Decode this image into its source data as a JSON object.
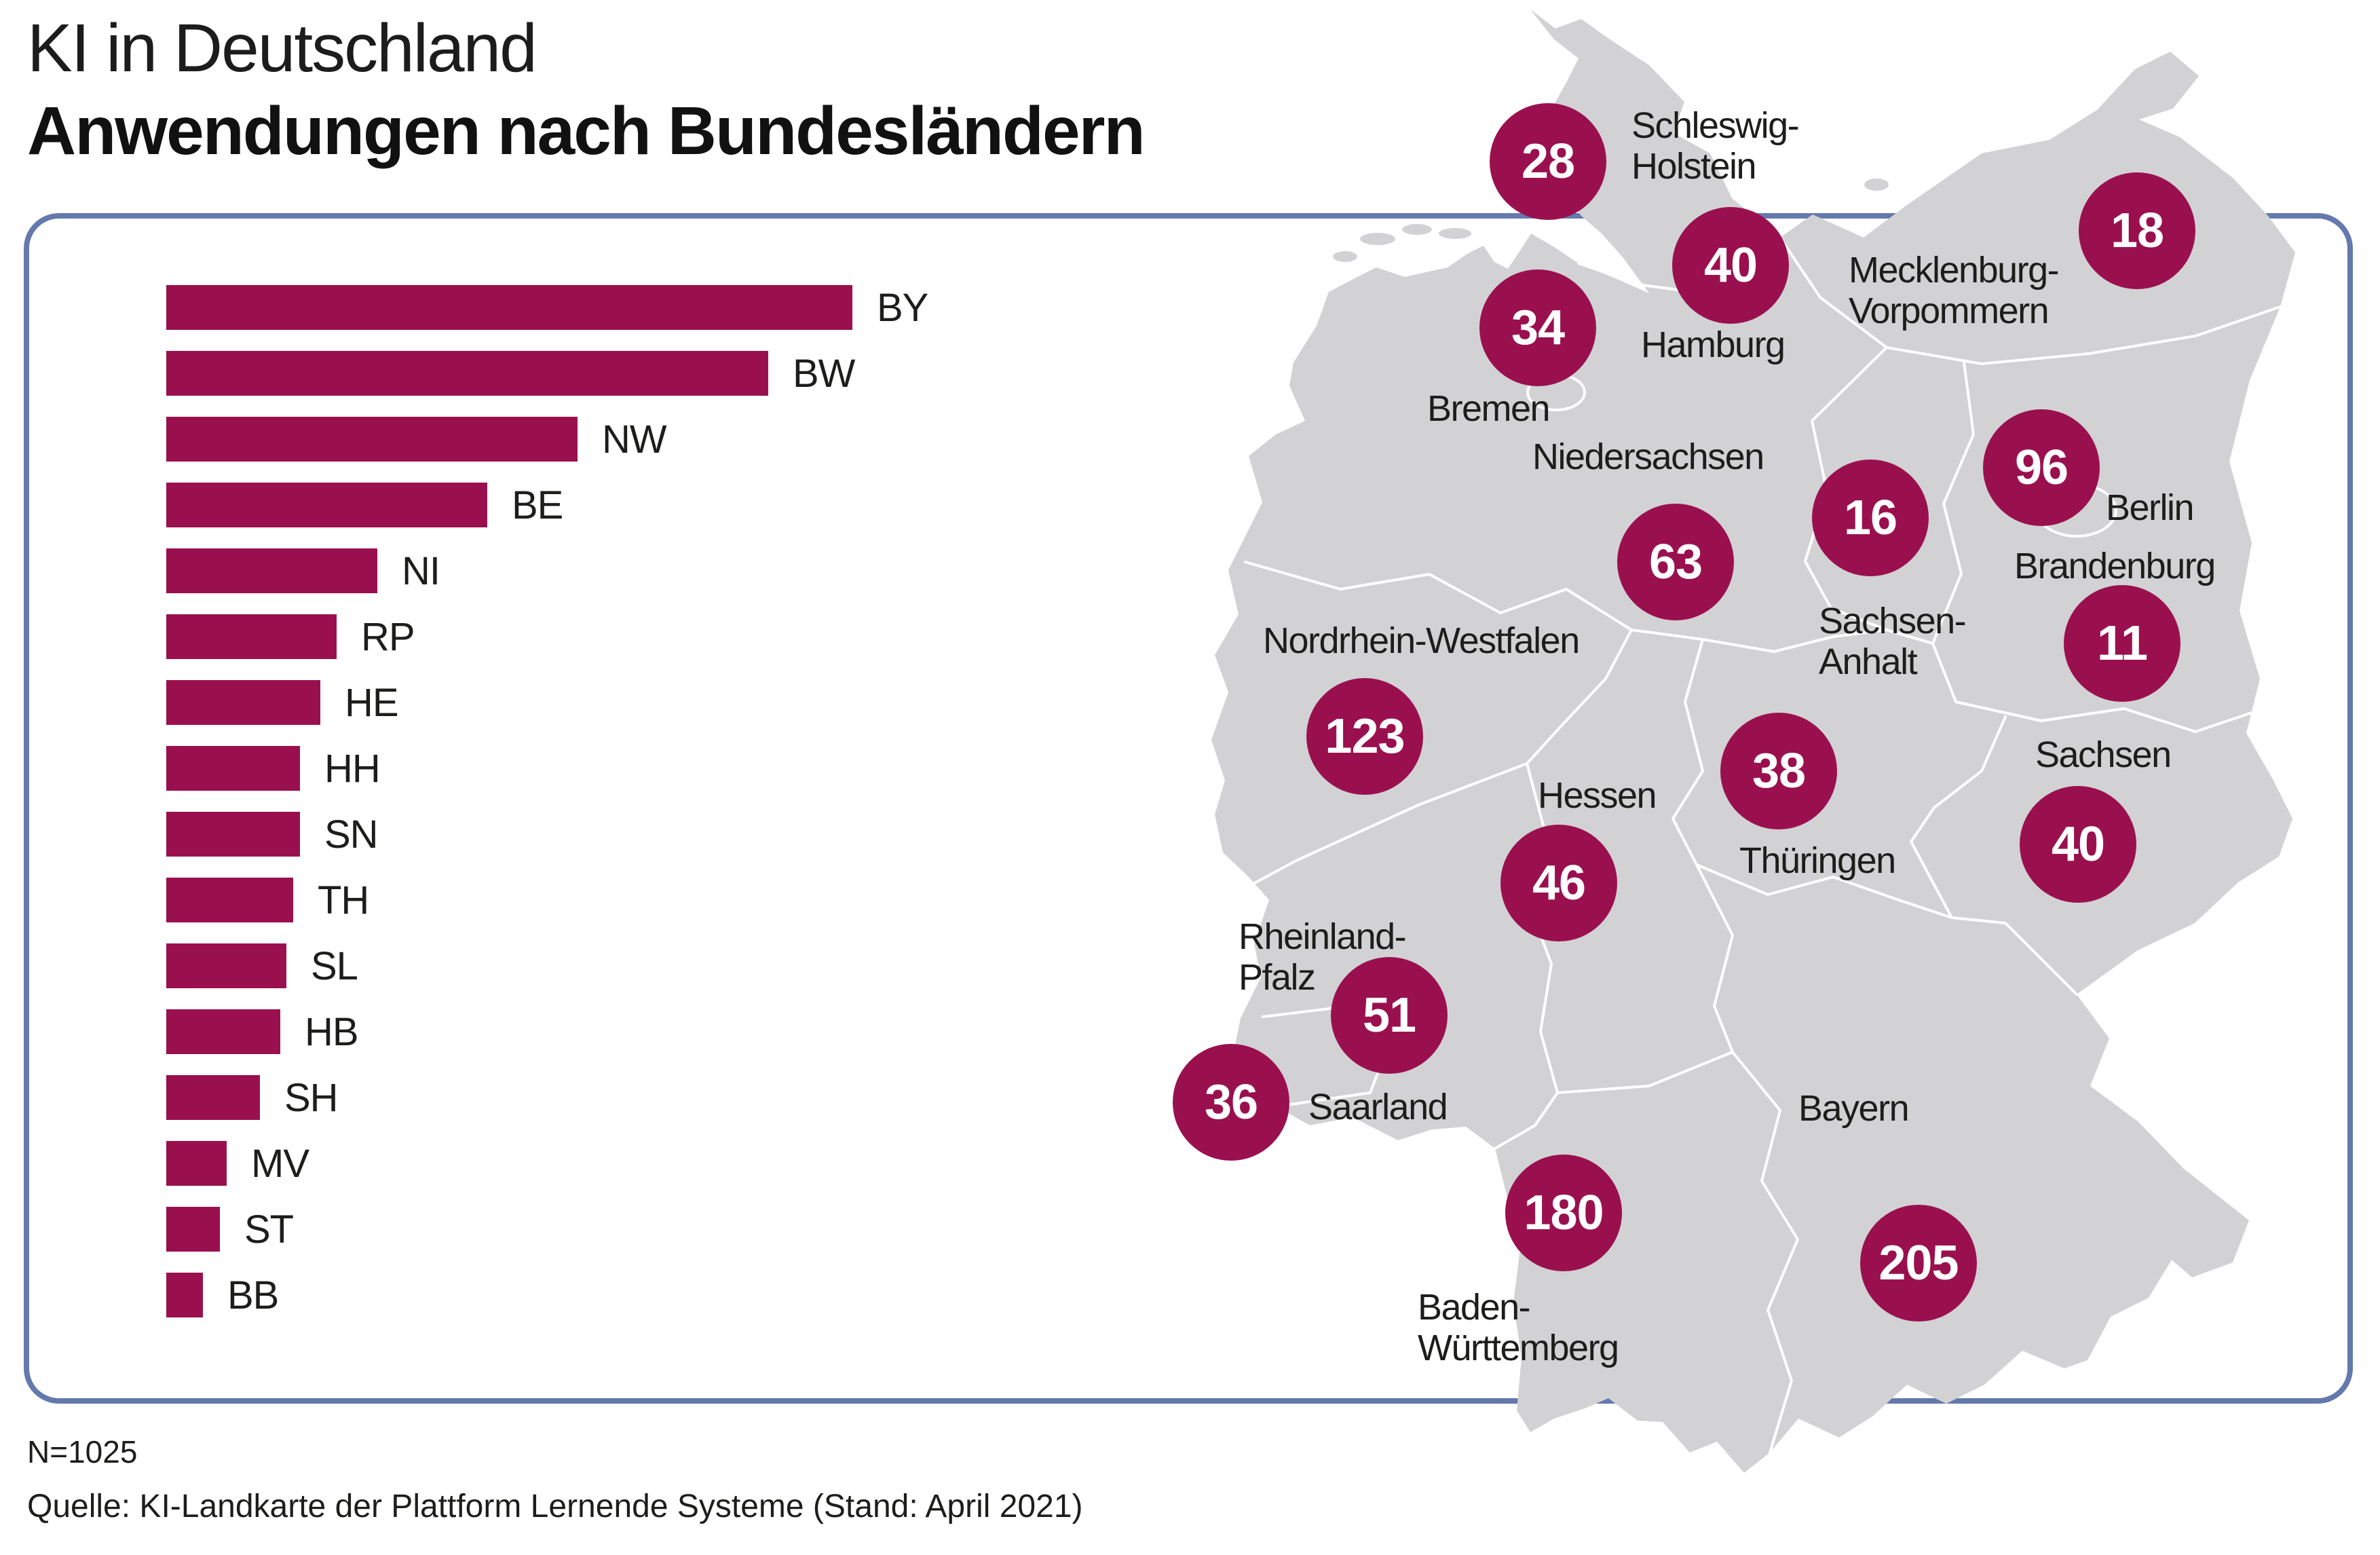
{
  "title": {
    "line1": "KI in Deutschland",
    "line2": "Anwendungen nach Bundesländern"
  },
  "colors": {
    "accent": "#9A104F",
    "map_fill": "#D2D2D4",
    "map_border": "#FFFFFF",
    "panel_border": "#6479AC",
    "text": "#1D1D1B"
  },
  "chart_data": {
    "type": "bar",
    "orientation": "horizontal",
    "title": "Anwendungen nach Bundesländern",
    "categories": [
      "BY",
      "BW",
      "NW",
      "BE",
      "NI",
      "RP",
      "HE",
      "HH",
      "SN",
      "TH",
      "SL",
      "HB",
      "SH",
      "MV",
      "ST",
      "BB"
    ],
    "values": [
      205,
      180,
      123,
      96,
      63,
      51,
      46,
      40,
      40,
      38,
      36,
      34,
      28,
      18,
      16,
      11
    ],
    "xlabel": "",
    "ylabel": "",
    "xlim": [
      0,
      205
    ],
    "grid": false,
    "legend": "none",
    "bar_color": "#9A104F"
  },
  "map": {
    "regions": [
      {
        "name_lines": [
          "Schleswig-",
          "Holstein"
        ],
        "value": 28
      },
      {
        "name_lines": [
          "Hamburg"
        ],
        "value": 40
      },
      {
        "name_lines": [
          "Mecklenburg-",
          "Vorpommern"
        ],
        "value": 18
      },
      {
        "name_lines": [
          "Bremen"
        ],
        "value": 34
      },
      {
        "name_lines": [
          "Berlin"
        ],
        "value": 96
      },
      {
        "name_lines": [
          "Sachsen-",
          "Anhalt"
        ],
        "value": 16
      },
      {
        "name_lines": [
          "Niedersachsen"
        ],
        "value": 63
      },
      {
        "name_lines": [
          "Brandenburg"
        ],
        "value": 11
      },
      {
        "name_lines": [
          "Nordrhein-Westfalen"
        ],
        "value": 123
      },
      {
        "name_lines": [
          "Thüringen"
        ],
        "value": 38
      },
      {
        "name_lines": [
          "Sachsen"
        ],
        "value": 40
      },
      {
        "name_lines": [
          "Hessen"
        ],
        "value": 46
      },
      {
        "name_lines": [
          "Rheinland-",
          "Pfalz"
        ],
        "value": 51
      },
      {
        "name_lines": [
          "Saarland"
        ],
        "value": 36
      },
      {
        "name_lines": [
          "Baden-",
          "Württemberg"
        ],
        "value": 180
      },
      {
        "name_lines": [
          "Bayern"
        ],
        "value": 205
      }
    ]
  },
  "footer": {
    "n_label": "N=1025",
    "source": "Quelle: KI-Landkarte der Plattform Lernende Systeme (Stand: April 2021)"
  }
}
